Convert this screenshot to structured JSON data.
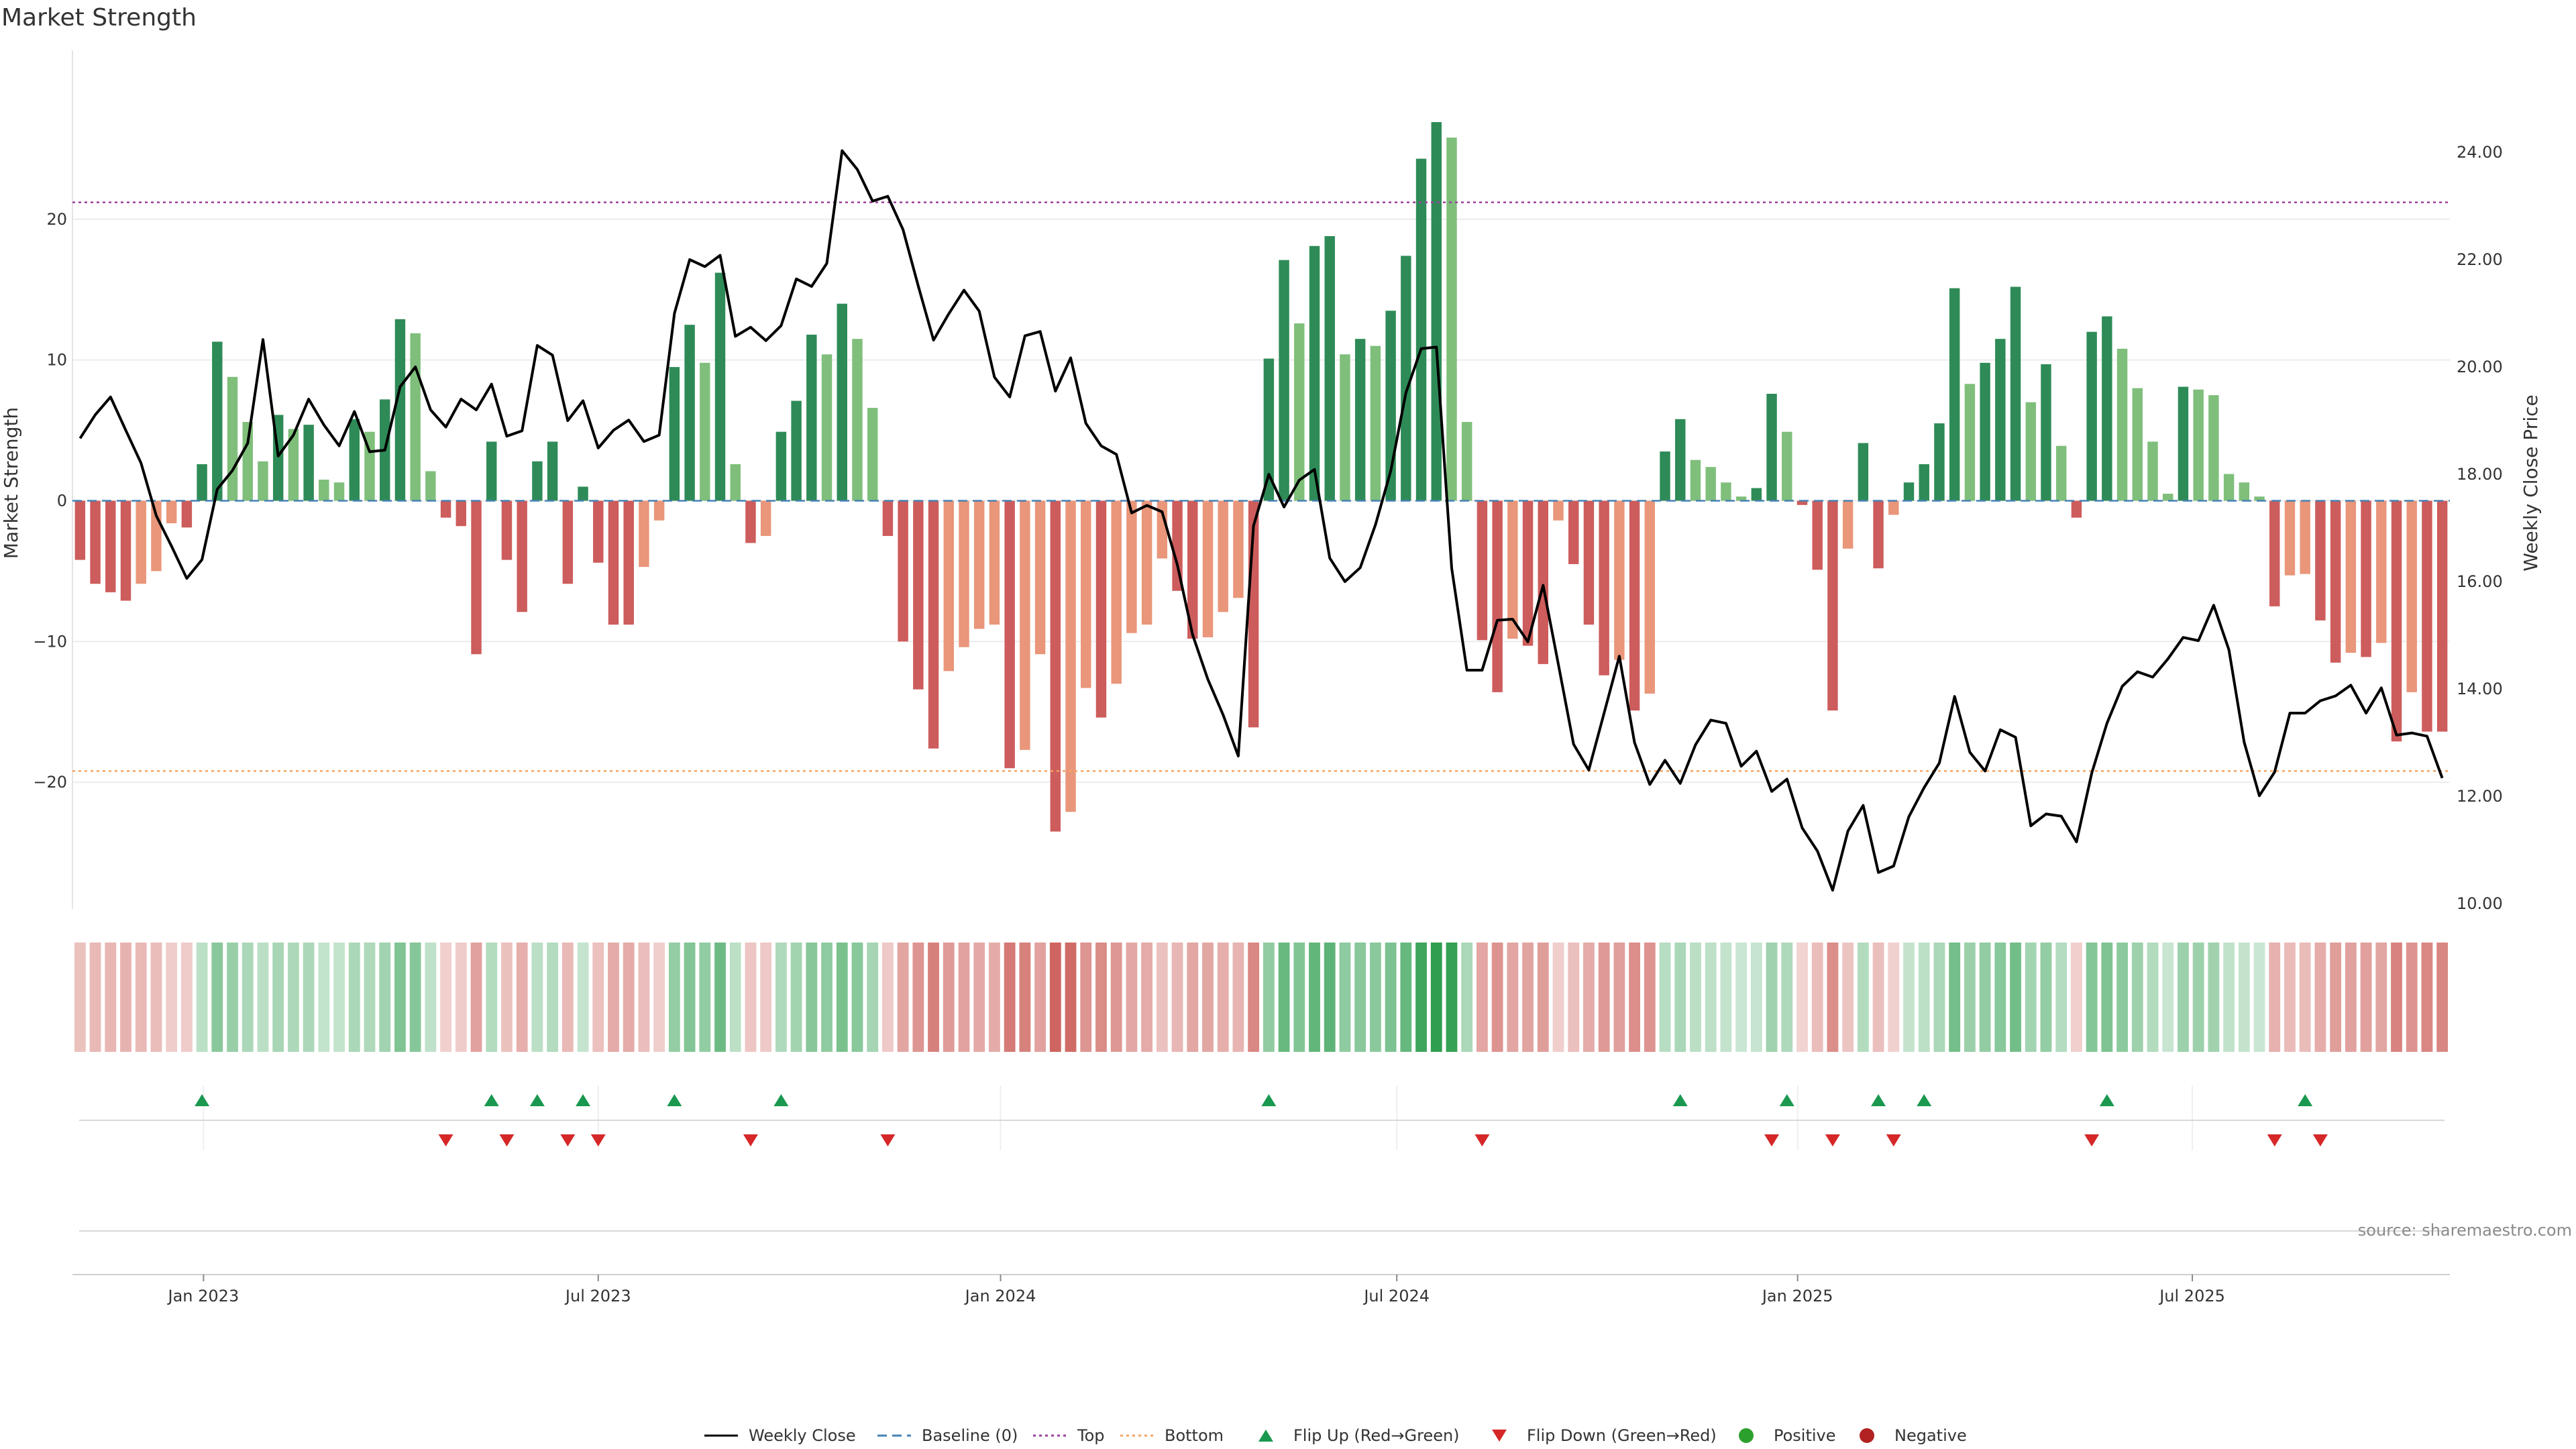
{
  "chart_data": {
    "type": "bar",
    "title": "Market Strength",
    "ylabel": "Market Strength",
    "y2label": "Weekly Close Price",
    "ylim": [
      -29,
      32
    ],
    "y2lim": [
      9.9,
      25.9
    ],
    "y_ticks": [
      20,
      10,
      0,
      -10,
      -20
    ],
    "y_tick_labels": [
      "20",
      "10",
      "0",
      "−10",
      "−20"
    ],
    "y2_ticks": [
      24,
      22,
      20,
      18,
      16,
      14,
      12,
      10
    ],
    "y2_tick_labels": [
      "24.00",
      "22.00",
      "20.00",
      "18.00",
      "16.00",
      "14.00",
      "12.00",
      "10.00"
    ],
    "x_ticks": [
      {
        "label": "Jan 2023",
        "index": 8.1
      },
      {
        "label": "Jul 2023",
        "index": 34.0
      },
      {
        "label": "Jan 2024",
        "index": 60.4
      },
      {
        "label": "Jul 2024",
        "index": 86.4
      },
      {
        "label": "Jan 2025",
        "index": 112.7
      },
      {
        "label": "Jul 2025",
        "index": 138.6
      }
    ],
    "thresholds": {
      "top": 21.2,
      "bottom": -19.2,
      "baseline": 0
    },
    "series": [
      {
        "name": "Market Strength",
        "values": [
          -4.2,
          -5.9,
          -6.5,
          -7.1,
          -5.9,
          -5.0,
          -1.6,
          -1.9,
          2.6,
          11.3,
          8.8,
          5.6,
          2.8,
          6.1,
          5.1,
          5.4,
          1.5,
          1.3,
          5.8,
          4.9,
          7.2,
          12.9,
          11.9,
          2.1,
          -1.2,
          -1.8,
          -10.9,
          4.2,
          -4.2,
          -7.9,
          2.8,
          4.2,
          -5.9,
          1.0,
          -4.4,
          -8.8,
          -8.8,
          -4.7,
          -1.4,
          9.5,
          12.5,
          9.8,
          16.2,
          2.6,
          -3.0,
          -2.5,
          4.9,
          7.1,
          11.8,
          10.4,
          14.0,
          11.5,
          6.6,
          -2.5,
          -10.0,
          -13.4,
          -17.6,
          -12.1,
          -10.4,
          -9.1,
          -8.8,
          -19.0,
          -17.7,
          -10.9,
          -23.5,
          -22.1,
          -13.3,
          -15.4,
          -13.0,
          -9.4,
          -8.8,
          -4.1,
          -6.4,
          -9.8,
          -9.7,
          -7.9,
          -6.9,
          -16.1,
          10.1,
          17.1,
          12.6,
          18.1,
          18.8,
          10.4,
          11.5,
          11.0,
          13.5,
          17.4,
          24.3,
          26.9,
          25.8,
          5.6,
          -9.9,
          -13.6,
          -9.8,
          -10.3,
          -11.6,
          -1.4,
          -4.5,
          -8.8,
          -12.4,
          -11.3,
          -14.9,
          -13.7,
          3.5,
          5.8,
          2.9,
          2.4,
          1.3,
          0.3,
          0.9,
          7.6,
          4.9,
          -0.3,
          -4.9,
          -14.9,
          -3.4,
          4.1,
          -4.8,
          -1.0,
          1.3,
          2.6,
          5.5,
          15.1,
          8.3,
          9.8,
          11.5,
          15.2,
          7.0,
          9.7,
          3.9,
          -1.2,
          12.0,
          13.1,
          10.8,
          8.0,
          4.2,
          0.5,
          8.1,
          7.9,
          7.5,
          1.9,
          1.3,
          0.3,
          -7.5,
          -5.3,
          -5.2,
          -8.5,
          -11.5,
          -10.8,
          -11.1,
          -10.1,
          -17.1,
          -13.6,
          -16.4,
          -16.4
        ]
      },
      {
        "name": "Weekly Close",
        "values": [
          18.67,
          19.11,
          19.44,
          18.82,
          18.21,
          17.23,
          16.66,
          16.06,
          16.41,
          17.72,
          18.07,
          18.58,
          20.51,
          18.34,
          18.73,
          19.4,
          18.92,
          18.53,
          19.17,
          18.42,
          18.45,
          19.63,
          20.0,
          19.2,
          18.88,
          19.4,
          19.2,
          19.68,
          18.71,
          18.81,
          20.4,
          20.22,
          19.0,
          19.37,
          18.49,
          18.82,
          19.01,
          18.61,
          18.73,
          21.0,
          22.0,
          21.87,
          22.08,
          20.57,
          20.74,
          20.49,
          20.77,
          21.64,
          21.5,
          21.93,
          24.03,
          23.68,
          23.09,
          23.18,
          22.56,
          21.51,
          20.5,
          20.99,
          21.43,
          21.04,
          19.81,
          19.44,
          20.58,
          20.66,
          19.55,
          20.17,
          18.95,
          18.53,
          18.37,
          17.28,
          17.42,
          17.3,
          16.31,
          15.01,
          14.18,
          13.52,
          12.75,
          17.04,
          18.0,
          17.39,
          17.89,
          18.09,
          16.44,
          16.0,
          16.26,
          17.06,
          18.06,
          19.52,
          20.34,
          20.37,
          16.25,
          14.35,
          14.35,
          15.28,
          15.3,
          14.88,
          15.93,
          14.46,
          12.97,
          12.49,
          13.55,
          14.61,
          13.0,
          12.22,
          12.67,
          12.24,
          12.96,
          13.42,
          13.36,
          12.56,
          12.84,
          12.09,
          12.32,
          11.41,
          10.98,
          10.25,
          11.35,
          11.83,
          10.58,
          10.7,
          11.62,
          12.16,
          12.62,
          13.86,
          12.82,
          12.47,
          13.24,
          13.1,
          11.45,
          11.67,
          11.63,
          11.15,
          12.43,
          13.36,
          14.05,
          14.32,
          14.22,
          14.56,
          14.96,
          14.9,
          15.56,
          14.73,
          13.01,
          12.01,
          12.45,
          13.55,
          13.55,
          13.78,
          13.87,
          14.07,
          13.55,
          14.02,
          13.14,
          13.18,
          13.12,
          12.34
        ]
      }
    ],
    "flip_up_indices": [
      8,
      27,
      30,
      33,
      39,
      46,
      78,
      105,
      112,
      118,
      121,
      133,
      146
    ],
    "flip_down_indices": [
      24,
      28,
      32,
      34,
      44,
      53,
      92,
      111,
      115,
      119,
      132,
      144,
      147
    ],
    "colors": {
      "green_dark": "#2e8b57",
      "green_light": "#7fbf7b",
      "red_dark": "#cd5c5c",
      "red_light": "#e9967a",
      "close_line": "#000000",
      "baseline": "#4682b4",
      "top_line": "#9b3f9b",
      "bottom_line": "#f4a460",
      "flip_up": "#1a9850",
      "flip_down": "#d62728",
      "positive": "#2ca02c",
      "negative": "#b22222"
    },
    "legend": {
      "placement": "bottom-center",
      "entries": [
        {
          "label": "Weekly Close",
          "kind": "line"
        },
        {
          "label": "Baseline (0)",
          "kind": "dash"
        },
        {
          "label": "Top",
          "kind": "dot"
        },
        {
          "label": "Bottom",
          "kind": "dot-orange"
        },
        {
          "label": "Flip Up (Red→Green)",
          "kind": "tri-up"
        },
        {
          "label": "Flip Down (Green→Red)",
          "kind": "tri-down"
        },
        {
          "label": "Positive",
          "kind": "circle-green"
        },
        {
          "label": "Negative",
          "kind": "circle-red"
        }
      ]
    },
    "source": "source: sharemaestro.com",
    "grid": true
  }
}
